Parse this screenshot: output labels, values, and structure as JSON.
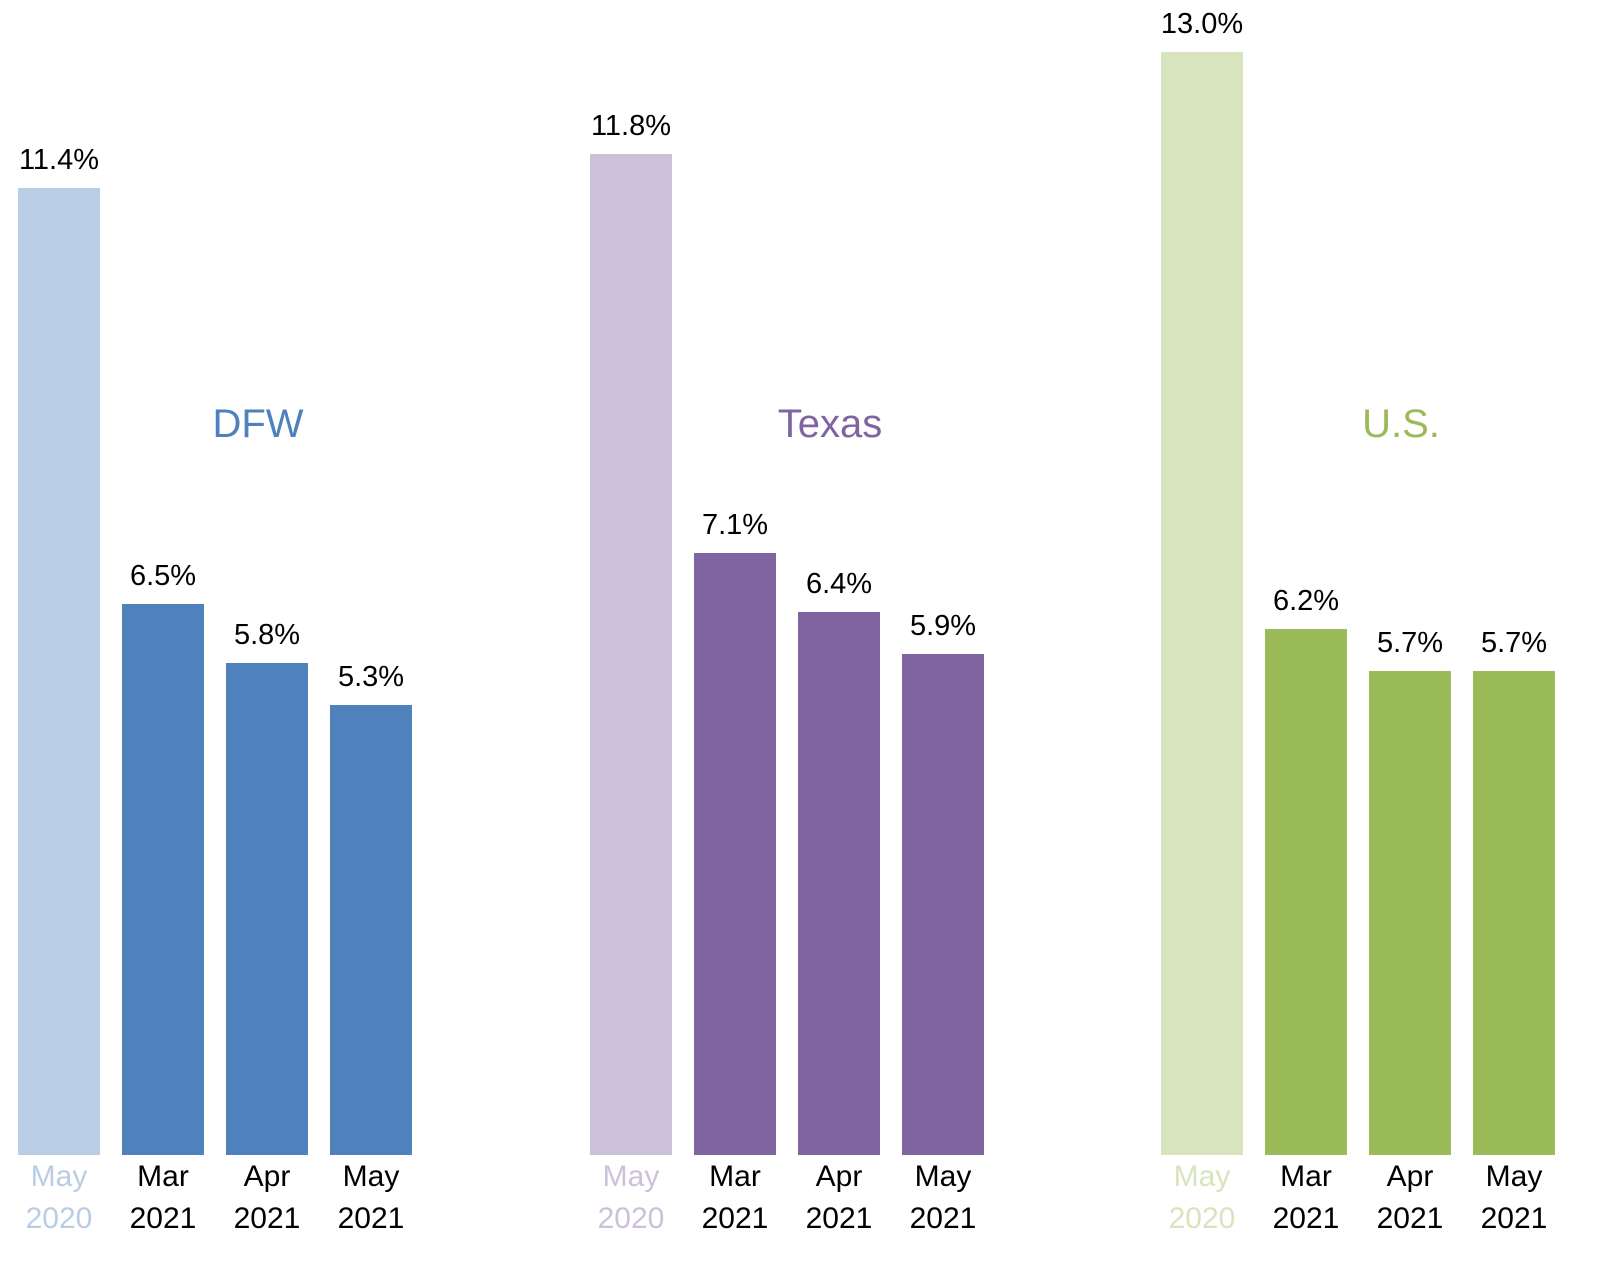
{
  "chart_data": [
    {
      "type": "bar",
      "title": "DFW",
      "title_color": "#4f81bd",
      "categories": [
        "May 2020",
        "Mar 2021",
        "Apr 2021",
        "May 2021"
      ],
      "values": [
        11.4,
        6.5,
        5.8,
        5.3
      ],
      "value_labels": [
        "11.4%",
        "6.5%",
        "5.8%",
        "5.3%"
      ],
      "colors": [
        "#b9cde5",
        "#4f81bd",
        "#4f81bd",
        "#4f81bd"
      ],
      "ylim": [
        0,
        13
      ]
    },
    {
      "type": "bar",
      "title": "Texas",
      "title_color": "#8064a2",
      "categories": [
        "May 2020",
        "Mar 2021",
        "Apr 2021",
        "May 2021"
      ],
      "values": [
        11.8,
        7.1,
        6.4,
        5.9
      ],
      "value_labels": [
        "11.8%",
        "7.1%",
        "6.4%",
        "5.9%"
      ],
      "colors": [
        "#ccc1da",
        "#8064a2",
        "#8064a2",
        "#8064a2"
      ],
      "ylim": [
        0,
        13
      ]
    },
    {
      "type": "bar",
      "title": "U.S.",
      "title_color": "#9bbb59",
      "categories": [
        "May 2020",
        "Mar 2021",
        "Apr 2021",
        "May 2021"
      ],
      "values": [
        13.0,
        6.2,
        5.7,
        5.7
      ],
      "value_labels": [
        "13.0%",
        "6.2%",
        "5.7%",
        "5.7%"
      ],
      "colors": [
        "#d7e4bd",
        "#9bbb59",
        "#9bbb59",
        "#9bbb59"
      ],
      "ylim": [
        0,
        13
      ]
    }
  ]
}
